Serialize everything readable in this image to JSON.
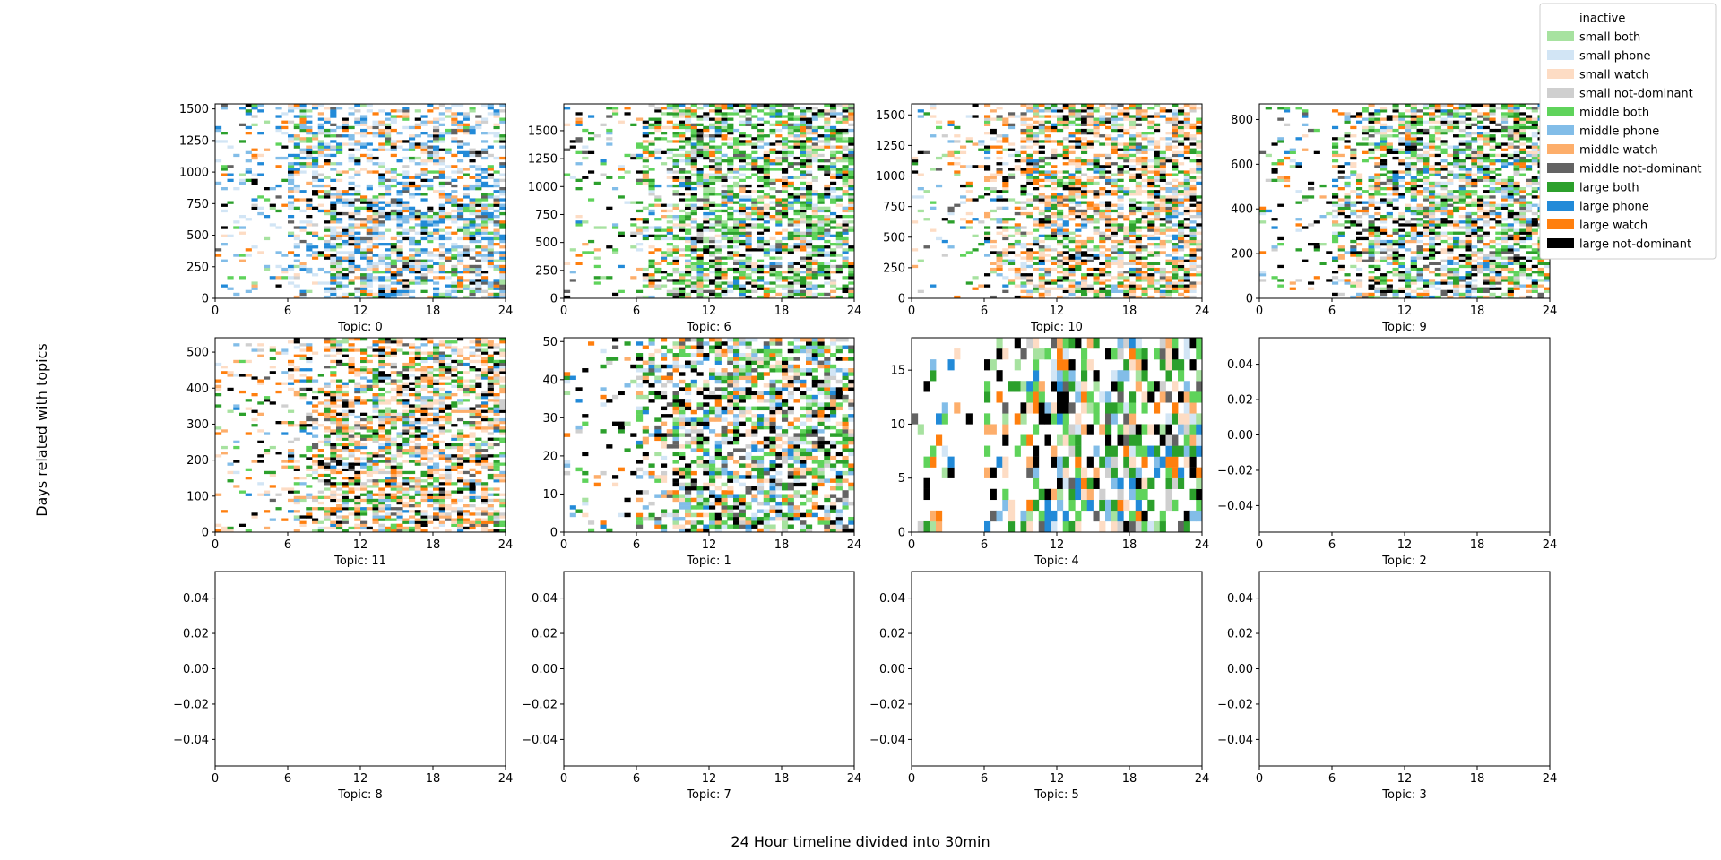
{
  "figure": {
    "ylabel": "Days related with topics",
    "xlabel": "24 Hour timeline divided into 30min"
  },
  "legend": {
    "placement": "top-right",
    "entries": [
      {
        "label": "inactive",
        "color": "#ffffff"
      },
      {
        "label": "small both",
        "color": "#a7e2a0"
      },
      {
        "label": "small phone",
        "color": "#d2e5f5"
      },
      {
        "label": "small watch",
        "color": "#fddcc4"
      },
      {
        "label": "small not-dominant",
        "color": "#cfcfcf"
      },
      {
        "label": "middle both",
        "color": "#5fd35b"
      },
      {
        "label": "middle phone",
        "color": "#82bde8"
      },
      {
        "label": "middle watch",
        "color": "#fdae6b"
      },
      {
        "label": "middle not-dominant",
        "color": "#636363"
      },
      {
        "label": "large both",
        "color": "#2ca02c"
      },
      {
        "label": "large phone",
        "color": "#228ad8"
      },
      {
        "label": "large watch",
        "color": "#ff7f0e"
      },
      {
        "label": "large not-dominant",
        "color": "#000000"
      }
    ]
  },
  "chart_data": [
    {
      "type": "heatmap",
      "title": "Topic: 0",
      "xlim": [
        0,
        24
      ],
      "xticks": [
        "0",
        "6",
        "12",
        "18",
        "24"
      ],
      "ylim": [
        0,
        1540
      ],
      "yticks": [
        "0",
        "250",
        "500",
        "750",
        "1000",
        "1250",
        "1500"
      ],
      "empty": false,
      "profile": "phone"
    },
    {
      "type": "heatmap",
      "title": "Topic: 6",
      "xlim": [
        0,
        24
      ],
      "xticks": [
        "0",
        "6",
        "12",
        "18",
        "24"
      ],
      "ylim": [
        0,
        1740
      ],
      "yticks": [
        "0",
        "250",
        "500",
        "750",
        "1000",
        "1250",
        "1500"
      ],
      "empty": false,
      "profile": "both"
    },
    {
      "type": "heatmap",
      "title": "Topic: 10",
      "xlim": [
        0,
        24
      ],
      "xticks": [
        "0",
        "6",
        "12",
        "18",
        "24"
      ],
      "ylim": [
        0,
        1590
      ],
      "yticks": [
        "0",
        "250",
        "500",
        "750",
        "1000",
        "1250",
        "1500"
      ],
      "empty": false,
      "profile": "watch"
    },
    {
      "type": "heatmap",
      "title": "Topic: 9",
      "xlim": [
        0,
        24
      ],
      "xticks": [
        "0",
        "6",
        "12",
        "18",
        "24"
      ],
      "ylim": [
        0,
        870
      ],
      "yticks": [
        "0",
        "200",
        "400",
        "600",
        "800"
      ],
      "empty": false,
      "profile": "mixed"
    },
    {
      "type": "heatmap",
      "title": "Topic: 11",
      "xlim": [
        0,
        24
      ],
      "xticks": [
        "0",
        "6",
        "12",
        "18",
        "24"
      ],
      "ylim": [
        0,
        540
      ],
      "yticks": [
        "0",
        "100",
        "200",
        "300",
        "400",
        "500"
      ],
      "empty": false,
      "profile": "watch"
    },
    {
      "type": "heatmap",
      "title": "Topic: 1",
      "xlim": [
        0,
        24
      ],
      "xticks": [
        "0",
        "6",
        "12",
        "18",
        "24"
      ],
      "ylim": [
        0,
        51
      ],
      "yticks": [
        "0",
        "10",
        "20",
        "30",
        "40",
        "50"
      ],
      "empty": false,
      "profile": "mixed"
    },
    {
      "type": "heatmap",
      "title": "Topic: 4",
      "xlim": [
        0,
        24
      ],
      "xticks": [
        "0",
        "6",
        "12",
        "18",
        "24"
      ],
      "ylim": [
        0,
        18
      ],
      "yticks": [
        "0",
        "5",
        "10",
        "15"
      ],
      "empty": false,
      "profile": "mixed"
    },
    {
      "type": "heatmap",
      "title": "Topic: 2",
      "xlim": [
        0,
        24
      ],
      "xticks": [
        "0",
        "6",
        "12",
        "18",
        "24"
      ],
      "ylim": [
        -0.055,
        0.055
      ],
      "yticks": [
        "0.04",
        "0.02",
        "0.00",
        "−0.02",
        "−0.04"
      ],
      "empty": true
    },
    {
      "type": "heatmap",
      "title": "Topic: 8",
      "xlim": [
        0,
        24
      ],
      "xticks": [
        "0",
        "6",
        "12",
        "18",
        "24"
      ],
      "ylim": [
        -0.055,
        0.055
      ],
      "yticks": [
        "0.04",
        "0.02",
        "0.00",
        "−0.02",
        "−0.04"
      ],
      "empty": true
    },
    {
      "type": "heatmap",
      "title": "Topic: 7",
      "xlim": [
        0,
        24
      ],
      "xticks": [
        "0",
        "6",
        "12",
        "18",
        "24"
      ],
      "ylim": [
        -0.055,
        0.055
      ],
      "yticks": [
        "0.04",
        "0.02",
        "0.00",
        "−0.02",
        "−0.04"
      ],
      "empty": true
    },
    {
      "type": "heatmap",
      "title": "Topic: 5",
      "xlim": [
        0,
        24
      ],
      "xticks": [
        "0",
        "6",
        "12",
        "18",
        "24"
      ],
      "ylim": [
        -0.055,
        0.055
      ],
      "yticks": [
        "0.04",
        "0.02",
        "0.00",
        "−0.02",
        "−0.04"
      ],
      "empty": true
    },
    {
      "type": "heatmap",
      "title": "Topic: 3",
      "xlim": [
        0,
        24
      ],
      "xticks": [
        "0",
        "6",
        "12",
        "18",
        "24"
      ],
      "ylim": [
        -0.055,
        0.055
      ],
      "yticks": [
        "0.04",
        "0.02",
        "0.00",
        "−0.02",
        "−0.04"
      ],
      "empty": true
    }
  ]
}
